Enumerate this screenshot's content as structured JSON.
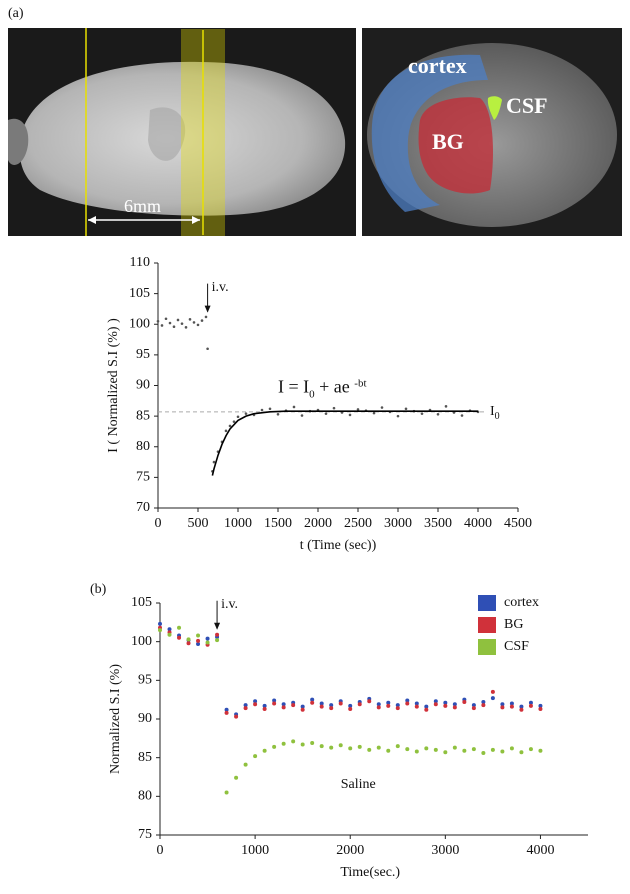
{
  "figure": {
    "panel_a": "(a)",
    "panel_b": "(b)",
    "scale_label": "6mm",
    "regions": [
      "cortex",
      "BG",
      "CSF"
    ]
  },
  "chart_data": [
    {
      "type": "scatter",
      "x_label": "t (Time (sec))",
      "y_label": "I ( Normalized S.I (%) )",
      "xlim": [
        0,
        4500
      ],
      "xticks": [
        0,
        500,
        1000,
        1500,
        2000,
        2500,
        3000,
        3500,
        4000,
        4500
      ],
      "ylim": [
        70,
        110
      ],
      "yticks": [
        70,
        75,
        80,
        85,
        90,
        95,
        100,
        105,
        110
      ],
      "reference_line": 85.7,
      "reference_label": [
        "I",
        "0"
      ],
      "equation": {
        "parts": [
          "I = I",
          "0",
          " + ae ",
          "-bt"
        ],
        "x": 1500,
        "y": 89.5
      },
      "annotations": [
        {
          "text": "i.v.",
          "x": 620,
          "y": 105
        }
      ],
      "series": [
        {
          "color": "#555555",
          "x": [
            0,
            50,
            100,
            150,
            200,
            250,
            300,
            350,
            400,
            450,
            500,
            550,
            600,
            620,
            680,
            700,
            750,
            800,
            850,
            900,
            950,
            1000,
            1100,
            1200,
            1300,
            1400,
            1500,
            1600,
            1700,
            1800,
            1900,
            2000,
            2100,
            2200,
            2300,
            2400,
            2500,
            2600,
            2700,
            2800,
            2900,
            3000,
            3100,
            3200,
            3300,
            3400,
            3500,
            3600,
            3700,
            3800,
            3900,
            4000
          ],
          "values": [
            100.5,
            99.8,
            100.9,
            100.2,
            99.6,
            100.7,
            100.1,
            99.5,
            100.8,
            100.3,
            99.9,
            100.6,
            101.2,
            96,
            76,
            77.5,
            79.2,
            80.8,
            82.6,
            83.4,
            84.1,
            84.9,
            85.4,
            85.2,
            86.0,
            86.2,
            85.3,
            85.9,
            86.5,
            85.1,
            85.8,
            86.0,
            85.4,
            86.3,
            85.6,
            85.2,
            86.1,
            85.9,
            85.5,
            86.4,
            85.7,
            85.0,
            86.2,
            85.8,
            85.4,
            86.0,
            85.3,
            86.6,
            85.6,
            85.1,
            85.9,
            85.7
          ]
        },
        {
          "color": "#000000",
          "style": "line",
          "x": [
            680,
            700,
            750,
            800,
            850,
            900,
            1000,
            1100,
            1200,
            1400,
            1600,
            2000,
            3000,
            4000
          ],
          "values": [
            75.3,
            76.4,
            78.6,
            80.4,
            81.8,
            82.9,
            84.3,
            85.0,
            85.4,
            85.7,
            85.8,
            85.8,
            85.8,
            85.8
          ]
        }
      ]
    },
    {
      "type": "scatter",
      "x_label": "Time(sec.)",
      "y_label": "Normalized S.I (%)",
      "xlim": [
        0,
        4500
      ],
      "xticks": [
        0,
        1000,
        2000,
        3000,
        4000
      ],
      "ylim": [
        75,
        105
      ],
      "yticks": [
        75,
        80,
        85,
        90,
        95,
        100,
        105
      ],
      "legend": "upper right",
      "annotations": [
        {
          "text": "i.v.",
          "x": 600,
          "y": 104
        },
        {
          "text": "Saline",
          "x": 1900,
          "y": 81.5
        }
      ],
      "x": [
        0,
        100,
        200,
        300,
        400,
        500,
        600,
        700,
        800,
        900,
        1000,
        1100,
        1200,
        1300,
        1400,
        1500,
        1600,
        1700,
        1800,
        1900,
        2000,
        2100,
        2200,
        2300,
        2400,
        2500,
        2600,
        2700,
        2800,
        2900,
        3000,
        3100,
        3200,
        3300,
        3400,
        3500,
        3600,
        3700,
        3800,
        3900,
        4000
      ],
      "series": [
        {
          "name": "cortex",
          "color": "#2f4fb5",
          "values": [
            102.3,
            101.6,
            100.8,
            100.2,
            99.7,
            100.4,
            100.6,
            91.2,
            90.6,
            91.8,
            92.3,
            91.7,
            92.4,
            91.9,
            92.1,
            91.6,
            92.5,
            92.0,
            91.8,
            92.3,
            91.7,
            92.2,
            92.6,
            91.9,
            92.1,
            91.8,
            92.4,
            92.0,
            91.6,
            92.3,
            92.1,
            91.9,
            92.5,
            91.8,
            92.2,
            92.7,
            91.9,
            92.0,
            91.6,
            92.1,
            91.7
          ]
        },
        {
          "name": "BG",
          "color": "#d0313a",
          "values": [
            101.8,
            101.2,
            100.5,
            99.8,
            100.1,
            99.6,
            100.9,
            90.8,
            90.3,
            91.4,
            91.9,
            91.3,
            92.0,
            91.5,
            91.8,
            91.2,
            92.1,
            91.6,
            91.4,
            92.0,
            91.3,
            91.9,
            92.3,
            91.5,
            91.7,
            91.4,
            92.0,
            91.6,
            91.2,
            91.9,
            91.7,
            91.5,
            92.2,
            91.4,
            91.8,
            93.5,
            91.5,
            91.6,
            91.2,
            91.7,
            91.3
          ]
        },
        {
          "name": "CSF",
          "color": "#8fc13e",
          "values": [
            101.5,
            100.9,
            101.8,
            100.3,
            100.8,
            99.9,
            100.2,
            80.5,
            82.4,
            84.1,
            85.2,
            85.9,
            86.4,
            86.8,
            87.1,
            86.7,
            86.9,
            86.5,
            86.3,
            86.6,
            86.2,
            86.4,
            86.0,
            86.3,
            85.9,
            86.5,
            86.1,
            85.8,
            86.2,
            86.0,
            85.7,
            86.3,
            85.9,
            86.1,
            85.6,
            86.0,
            85.8,
            86.2,
            85.7,
            86.1,
            85.9
          ]
        }
      ]
    }
  ]
}
